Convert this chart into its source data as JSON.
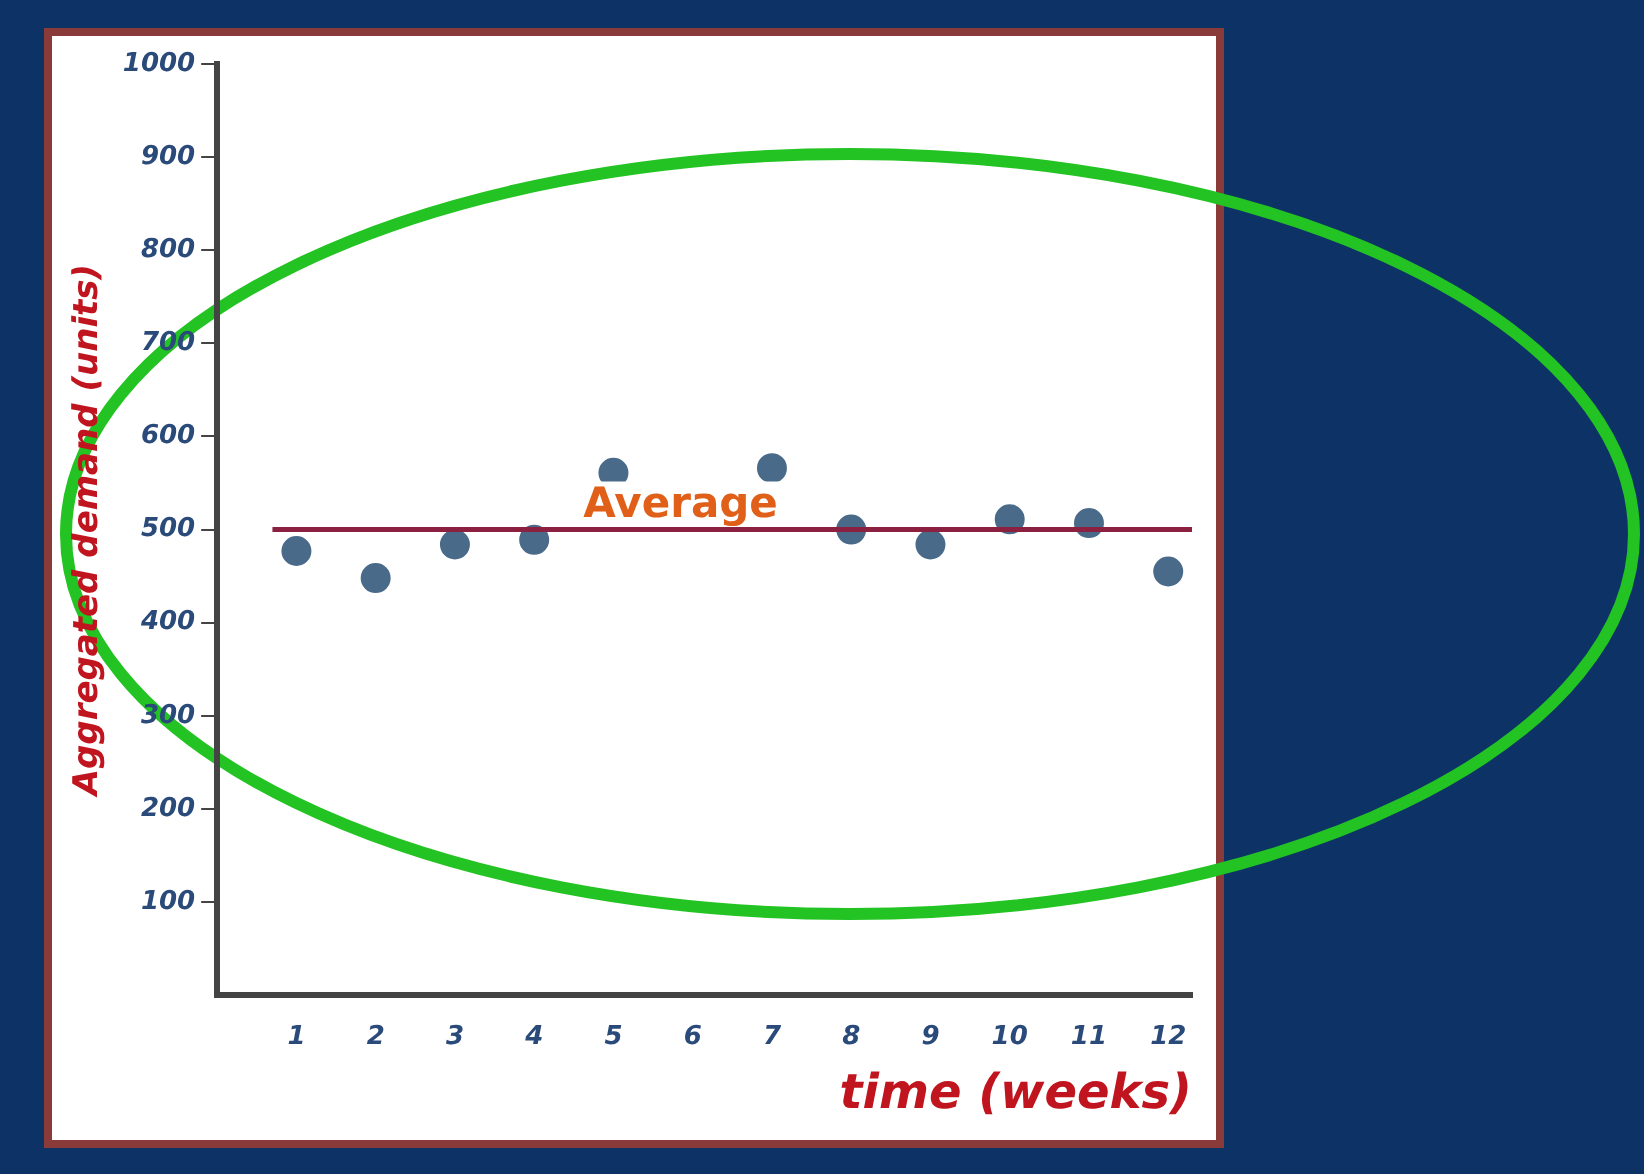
{
  "chart_data": {
    "type": "scatter",
    "xlabel": "time (weeks)",
    "ylabel": "Aggregated demand (units)",
    "x": [
      1,
      2,
      3,
      4,
      5,
      6,
      7,
      8,
      9,
      10,
      11,
      12
    ],
    "series": [
      {
        "color": "#4a6a8a",
        "values": [
          477,
          448,
          484,
          489,
          561,
          null,
          566,
          500,
          484,
          511,
          507,
          455
        ]
      }
    ],
    "xlim": [
      0,
      12.3
    ],
    "xticks": [
      1,
      2,
      3,
      4,
      5,
      6,
      7,
      8,
      9,
      10,
      11,
      12
    ],
    "ylim": [
      0,
      1000
    ],
    "yticks": [
      100,
      200,
      300,
      400,
      500,
      600,
      700,
      800,
      900,
      1000
    ],
    "ref_lines": [
      {
        "axis": "y",
        "value": 500,
        "label": "Average",
        "color": "#8b2040"
      }
    ],
    "marker": "circle",
    "grid": false,
    "legend": false
  }
}
